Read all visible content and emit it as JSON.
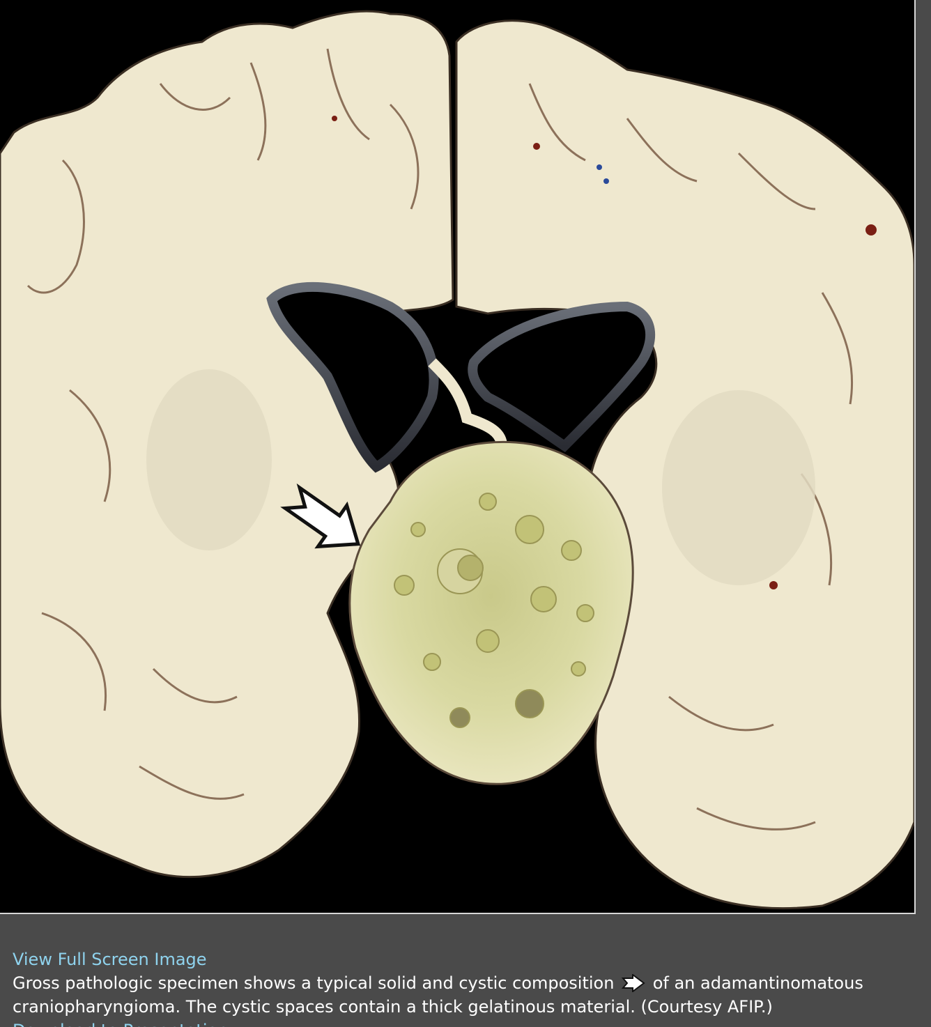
{
  "figure": {
    "view_full_label": "View Full Screen Image",
    "caption_before_arrow": "Gross pathologic specimen shows a typical solid and cystic composition",
    "caption_after_arrow": "of an adamantinomatous craniopharyngioma. The cystic spaces contain a thick gelatinous material. (Courtesy AFIP.)",
    "download_label": "Download to Presentation",
    "arrow_icon": "open-arrow-icon"
  }
}
